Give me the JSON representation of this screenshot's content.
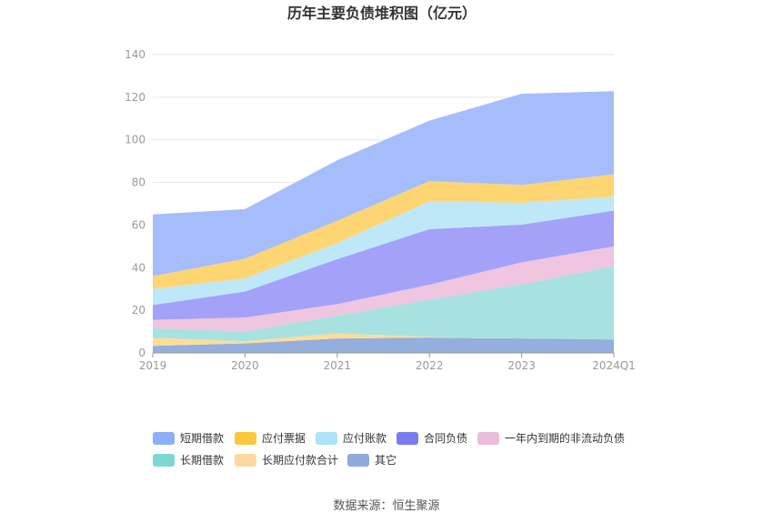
{
  "chart_data": {
    "type": "area",
    "title": "历年主要负债堆积图（亿元）",
    "categories": [
      "2019",
      "2020",
      "2021",
      "2022",
      "2023",
      "2024Q1"
    ],
    "ylim": [
      0,
      140
    ],
    "yticks": [
      0,
      20,
      40,
      60,
      80,
      100,
      120,
      140
    ],
    "grid": true,
    "stacked": true,
    "legend_position": "bottom",
    "series": [
      {
        "name": "其它",
        "color": "#94aede",
        "values": [
          3.3,
          4.5,
          6.8,
          7.2,
          6.8,
          6.3
        ]
      },
      {
        "name": "长期应付款合计",
        "color": "#fedd97",
        "values": [
          3.8,
          1.0,
          2.4,
          0.3,
          0.0,
          0.0
        ]
      },
      {
        "name": "长期借款",
        "color": "#a7e2e0",
        "values": [
          4.5,
          4.5,
          8.3,
          17.5,
          25.4,
          34.4
        ]
      },
      {
        "name": "一年内到期的非流动负债",
        "color": "#efc5df",
        "values": [
          3.9,
          6.6,
          5.4,
          7.0,
          10.3,
          9.3
        ]
      },
      {
        "name": "合同负债",
        "color": "#a3a2f8",
        "values": [
          7.0,
          12.2,
          21.1,
          26.1,
          17.7,
          16.8
        ]
      },
      {
        "name": "应付账款",
        "color": "#bee8f8",
        "values": [
          7.5,
          6.2,
          7.5,
          13.0,
          10.3,
          6.5
        ]
      },
      {
        "name": "应付票据",
        "color": "#fed573",
        "values": [
          6.0,
          9.2,
          10.5,
          9.5,
          8.3,
          10.5
        ]
      },
      {
        "name": "短期借款",
        "color": "#a6bdfb",
        "values": [
          29.0,
          23.3,
          28.4,
          28.4,
          42.8,
          39.0
        ]
      }
    ],
    "legend_order": [
      "短期借款",
      "应付票据",
      "应付账款",
      "合同负债",
      "一年内到期的非流动负债",
      "长期借款",
      "长期应付款合计",
      "其它"
    ],
    "legend_colors": {
      "短期借款": "#8caefb",
      "应付票据": "#fbc73c",
      "应付账款": "#aee3f9",
      "合同负债": "#7b7bf0",
      "一年内到期的非流动负债": "#ebbcdc",
      "长期借款": "#7fd7d5",
      "长期应付款合计": "#fdd9a0",
      "其它": "#8fa9d8"
    }
  },
  "source_text": "数据来源：恒生聚源"
}
